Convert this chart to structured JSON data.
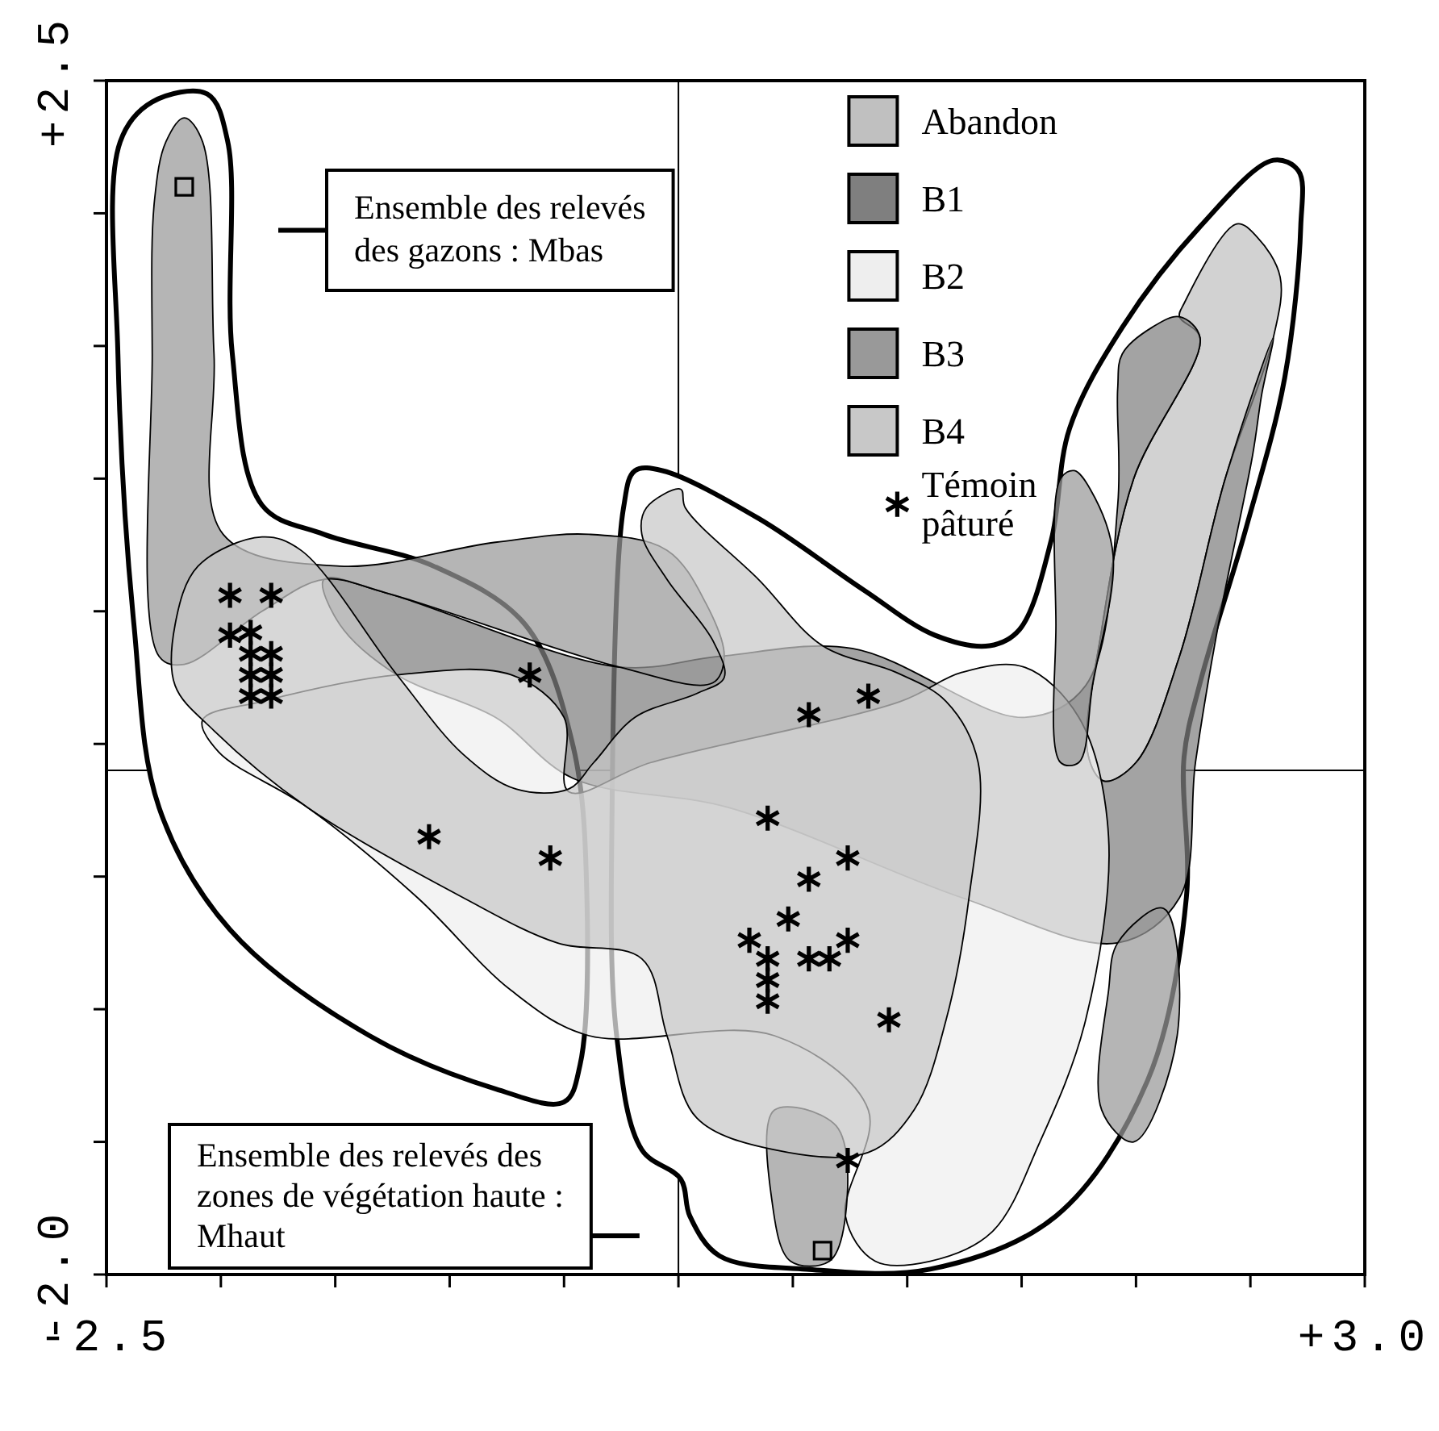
{
  "chart_data": {
    "type": "scatter",
    "xlim": [
      -2.5,
      3.0
    ],
    "ylim": [
      -2.0,
      2.5
    ],
    "xticks": [
      {
        "value": -2.5,
        "label": "-2.5"
      },
      {
        "value": -2,
        "label": null
      },
      {
        "value": -1.5,
        "label": null
      },
      {
        "value": -1,
        "label": null
      },
      {
        "value": -0.5,
        "label": null
      },
      {
        "value": 0,
        "label": null
      },
      {
        "value": 0.5,
        "label": null
      },
      {
        "value": 1,
        "label": null
      },
      {
        "value": 1.5,
        "label": null
      },
      {
        "value": 2,
        "label": null
      },
      {
        "value": 2.5,
        "label": null
      },
      {
        "value": 3,
        "label": "+3.0"
      }
    ],
    "yticks": [
      {
        "value": -2,
        "label": "-2.0"
      },
      {
        "value": -1.5,
        "label": null
      },
      {
        "value": -1,
        "label": null
      },
      {
        "value": -0.5,
        "label": null
      },
      {
        "value": 0,
        "label": null
      },
      {
        "value": 0.5,
        "label": null
      },
      {
        "value": 1,
        "label": null
      },
      {
        "value": 1.5,
        "label": null
      },
      {
        "value": 2,
        "label": null
      },
      {
        "value": 2.5,
        "label": "+2.5"
      }
    ],
    "ref_lines": [
      {
        "axis": "x",
        "value": 0
      },
      {
        "axis": "y",
        "value": -0.1
      }
    ],
    "legend": "top right",
    "series": [
      {
        "type": "area",
        "color": "#ffffff",
        "x": [
          -2.44,
          -2.3,
          -2.06,
          -1.97,
          -1.95,
          -1.82,
          -1.55,
          -1.07,
          -0.67,
          -0.46,
          -0.4,
          -0.43,
          -0.5,
          -0.8,
          -1.35,
          -1.96,
          -2.27,
          -2.38,
          -2.45
        ],
        "values": [
          2.27,
          2.42,
          2.45,
          2.27,
          1.47,
          0.9,
          0.79,
          0.67,
          0.45,
          -0.01,
          -0.58,
          -1.21,
          -1.35,
          -1.3,
          -1.1,
          -0.7,
          -0.24,
          0.45,
          1.47
        ]
      },
      {
        "type": "area",
        "color": "#ffffff",
        "x": [
          -0.24,
          -0.19,
          -0.07,
          0.35,
          0.81,
          1.12,
          1.36,
          1.49,
          1.63,
          1.71,
          1.94,
          2.28,
          2.6,
          2.71,
          2.72,
          2.65,
          2.48,
          2.28,
          2.21,
          2.22,
          2.05,
          1.65,
          1.1,
          0.56,
          0.18,
          0.05,
          0.01,
          -0.16,
          -0.27,
          -0.29
        ],
        "values": [
          0.89,
          1.03,
          1.03,
          0.85,
          0.58,
          0.41,
          0.37,
          0.43,
          0.77,
          1.19,
          1.57,
          1.95,
          2.2,
          2.16,
          1.95,
          1.38,
          0.81,
          0.23,
          -0.05,
          -0.58,
          -1.27,
          -1.78,
          -1.98,
          -1.98,
          -1.93,
          -1.78,
          -1.64,
          -1.53,
          -1.1,
          -0.24
        ]
      },
      {
        "name": "Abandon",
        "type": "area",
        "color": "#c0c0c0",
        "x": [
          2.21,
          2.44,
          2.53,
          2.63,
          2.6,
          2.39,
          2.19,
          2.0,
          1.86,
          1.79,
          1.85,
          1.99,
          2.28,
          2.19
        ],
        "values": [
          1.66,
          1.96,
          1.91,
          1.76,
          1.53,
          1.0,
          0.33,
          -0.07,
          -0.14,
          -0.04,
          0.43,
          1.0,
          1.53,
          1.61
        ]
      },
      {
        "name": "B1",
        "type": "area",
        "color": "#7f7f7f",
        "x": [
          -1.55,
          -1.28,
          -0.26,
          0.18,
          0.76,
          1.51,
          1.78,
          1.92,
          1.92,
          1.94,
          2.07,
          2.19,
          2.28,
          1.99,
          1.85,
          1.79,
          1.86,
          2.0,
          2.19,
          2.39,
          2.6,
          2.55,
          2.51,
          2.36,
          2.26,
          2.19,
          1.92,
          1.24,
          0.22,
          -0.46,
          -0.8,
          -1.23,
          -1.48
        ],
        "values": [
          0.62,
          0.57,
          0.29,
          0.33,
          0.36,
          0.1,
          0.22,
          0.9,
          1.34,
          1.47,
          1.57,
          1.61,
          1.53,
          1.0,
          0.43,
          -0.04,
          -0.14,
          -0.07,
          0.33,
          1.0,
          1.53,
          1.32,
          1.09,
          0.45,
          -0.07,
          -0.58,
          -0.75,
          -0.58,
          -0.24,
          -0.13,
          0.1,
          0.26,
          0.45
        ]
      },
      {
        "name": "B2",
        "type": "area",
        "color": "#eeeeee",
        "x": [
          -2.08,
          -1.82,
          -1.23,
          -0.73,
          -0.5,
          -0.48,
          -0.12,
          0.97,
          1.24,
          1.51,
          1.75,
          1.88,
          1.78,
          1.58,
          1.37,
          1.1,
          0.86,
          0.73,
          0.83,
          0.42,
          -0.39,
          -0.73,
          -1.14,
          -1.62,
          -2.01
        ],
        "values": [
          0.09,
          0.16,
          0.26,
          0.26,
          0.1,
          -0.18,
          -0.07,
          0.16,
          0.27,
          0.29,
          0.1,
          -0.35,
          -1.04,
          -1.5,
          -1.84,
          -1.95,
          -1.95,
          -1.78,
          -1.38,
          -1.1,
          -1.1,
          -0.93,
          -0.58,
          -0.24,
          -0.03
        ]
      },
      {
        "name": "B3",
        "type": "area",
        "color": "#999999",
        "x": [
          -2.24,
          -2.16,
          -2.08,
          -2.03,
          -1.99,
          -1.48,
          -0.8,
          -0.39,
          -0.05,
          0.12,
          0.2,
          0.15,
          -0.26,
          -1.28,
          -1.55,
          -1.82,
          -2.16,
          -2.27,
          -2.3,
          -2.29,
          null,
          1.67,
          1.73,
          1.8,
          1.9,
          1.81,
          1.75,
          1.67,
          1.65,
          null,
          1.92,
          2.12,
          2.18,
          1.99,
          1.85,
          1.88,
          null,
          0.42,
          0.69,
          0.73,
          0.66,
          0.49,
          0.41
        ],
        "values": [
          2.27,
          2.36,
          2.27,
          1.47,
          0.79,
          0.67,
          0.76,
          0.79,
          0.73,
          0.53,
          0.33,
          0.23,
          0.29,
          0.57,
          0.62,
          0.5,
          0.3,
          0.33,
          1.47,
          2.05,
          null,
          1.0,
          1.03,
          0.96,
          0.71,
          0.22,
          -0.07,
          -0.07,
          0.45,
          null,
          -0.75,
          -0.62,
          -1.1,
          -1.5,
          -1.38,
          -0.93,
          null,
          -1.38,
          -1.44,
          -1.78,
          -1.95,
          -1.95,
          -1.73
        ]
      },
      {
        "name": "B4",
        "type": "area",
        "color": "#c8c8c8",
        "x": [
          -2.2,
          -2.1,
          -1.82,
          -1.65,
          -1.23,
          -0.94,
          -0.71,
          -0.48,
          -0.37,
          -0.19,
          0.08,
          0.2,
          0.15,
          -0.05,
          -0.16,
          -0.14,
          0.01,
          0.03,
          0.35,
          0.63,
          0.95,
          1.17,
          1.31,
          1.27,
          1.17,
          1.03,
          0.83,
          0.42,
          0.08,
          -0.05,
          -0.16,
          -0.53,
          -0.94,
          -1.62,
          -2.03,
          -2.2
        ],
        "values": [
          0.45,
          0.67,
          0.78,
          0.73,
          0.26,
          -0.04,
          -0.17,
          -0.17,
          -0.07,
          0.1,
          0.19,
          0.25,
          0.39,
          0.62,
          0.79,
          0.89,
          0.96,
          0.89,
          0.62,
          0.37,
          0.27,
          0.16,
          -0.07,
          -0.58,
          -1.04,
          -1.38,
          -1.54,
          -1.53,
          -1.41,
          -1.1,
          -0.81,
          -0.75,
          -0.58,
          -0.24,
          0.05,
          0.22
        ]
      },
      {
        "marker": "square",
        "color": "#000000",
        "x": [
          -2.16,
          0.63
        ],
        "values": [
          2.1,
          -1.91
        ]
      },
      {
        "name": "Témoin pâturé",
        "marker": "cross",
        "color": "#000000",
        "x": [
          -1.96,
          -1.78,
          -1.96,
          -1.87,
          -1.87,
          -1.78,
          -1.87,
          -1.78,
          -1.87,
          -1.78,
          -0.65,
          -1.09,
          -0.56,
          0.57,
          0.83,
          0.39,
          0.74,
          0.57,
          0.48,
          0.31,
          0.39,
          0.57,
          0.66,
          0.74,
          0.39,
          0.39,
          0.92,
          0.74
        ],
        "values": [
          0.56,
          0.56,
          0.41,
          0.42,
          0.34,
          0.34,
          0.26,
          0.26,
          0.18,
          0.18,
          0.26,
          -0.35,
          -0.43,
          0.11,
          0.18,
          -0.28,
          -0.43,
          -0.51,
          -0.66,
          -0.74,
          -0.81,
          -0.81,
          -0.81,
          -0.74,
          -0.89,
          -0.97,
          -1.04,
          -1.57
        ]
      }
    ],
    "annotations": [
      "Ensemble des relevés des gazons : Mbas",
      "Ensemble des relevés des zones de végétation haute : Mhaut"
    ]
  }
}
